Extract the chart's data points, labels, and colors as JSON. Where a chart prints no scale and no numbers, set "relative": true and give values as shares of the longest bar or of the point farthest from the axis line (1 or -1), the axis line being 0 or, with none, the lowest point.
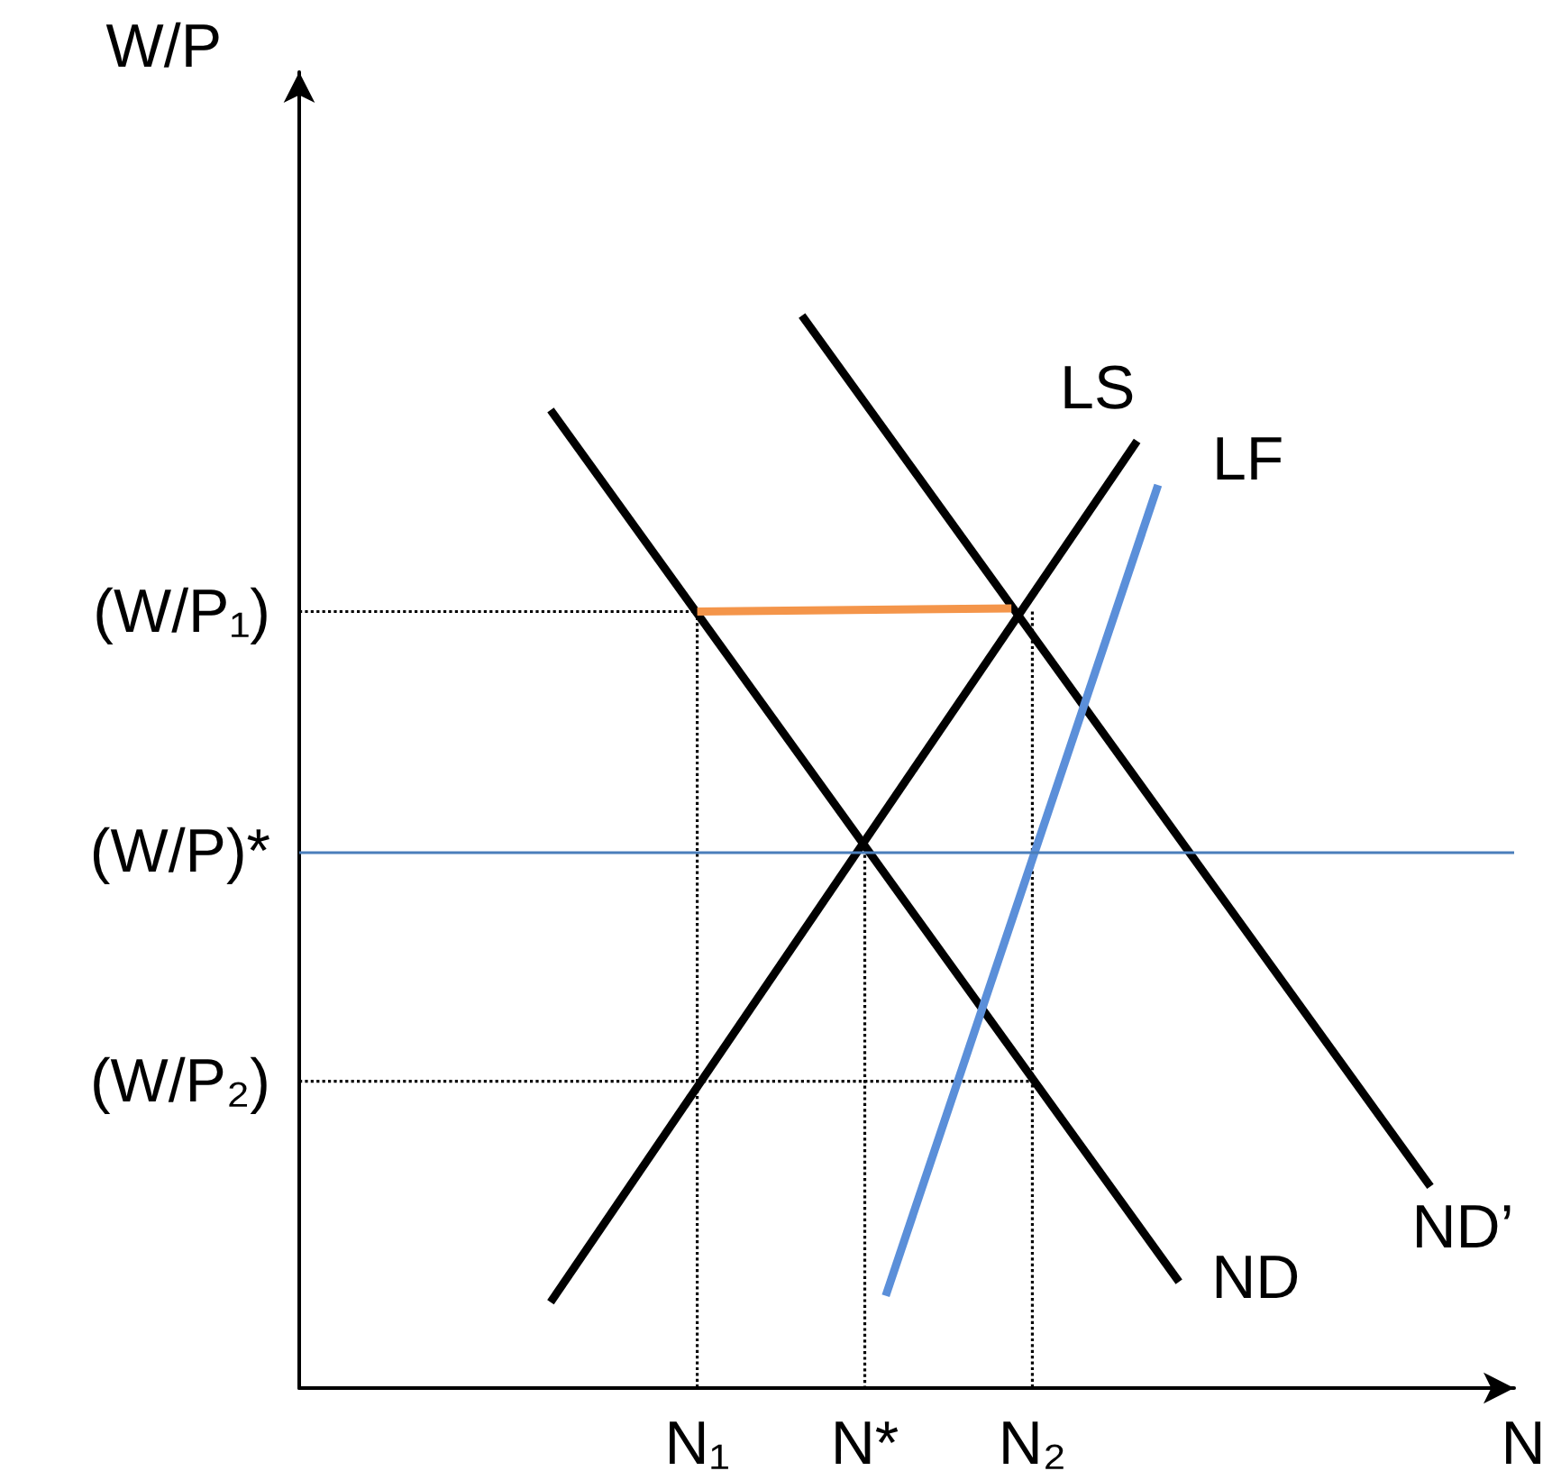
{
  "chart_data": {
    "type": "line",
    "xlabel": "N",
    "ylabel": "W/P",
    "relative": true,
    "categories": [
      null,
      null,
      null,
      null,
      null,
      null,
      null,
      null,
      null,
      null,
      null,
      null,
      null,
      null,
      null,
      null,
      null,
      null,
      null,
      "N₁",
      null,
      null,
      null,
      null,
      null,
      null,
      null,
      "N*",
      null,
      null,
      null,
      null,
      null,
      null,
      null,
      "N₂",
      null,
      null,
      null,
      null,
      null,
      null,
      null,
      null,
      null,
      null,
      null,
      null,
      null,
      null,
      null,
      null,
      null,
      null,
      null,
      null,
      null,
      null,
      null
    ],
    "grid": false,
    "legend": false,
    "marker": "none",
    "line_style": "solid",
    "ref_lines": [
      {
        "axis": "y",
        "value": 0.497,
        "label": "(W/P)*",
        "color": "#4a7ebb"
      }
    ],
    "series": [
      {
        "name": "ND",
        "color": "#000000",
        "values": [
          null,
          null,
          null,
          null,
          null,
          null,
          null,
          null,
          null,
          null,
          null,
          null,
          0.912,
          null,
          null,
          null,
          null,
          null,
          null,
          null,
          null,
          null,
          null,
          null,
          null,
          null,
          null,
          null,
          null,
          null,
          null,
          null,
          null,
          null,
          null,
          null,
          null,
          null,
          null,
          null,
          null,
          null,
          0.099,
          null,
          null,
          null,
          null,
          null,
          null,
          null,
          null,
          null,
          null,
          null,
          null,
          null,
          null,
          null,
          null
        ]
      },
      {
        "name": "ND’",
        "color": "#000000",
        "values": [
          null,
          null,
          null,
          null,
          null,
          null,
          null,
          null,
          null,
          null,
          null,
          null,
          null,
          null,
          null,
          null,
          null,
          null,
          null,
          null,
          null,
          null,
          null,
          null,
          1,
          null,
          null,
          null,
          null,
          null,
          null,
          null,
          null,
          null,
          null,
          null,
          null,
          null,
          null,
          null,
          null,
          null,
          null,
          null,
          null,
          null,
          null,
          null,
          null,
          null,
          null,
          null,
          null,
          null,
          0.188,
          null,
          null,
          null,
          null
        ]
      },
      {
        "name": "LS",
        "color": "#000000",
        "values": [
          null,
          null,
          null,
          null,
          null,
          null,
          null,
          null,
          null,
          null,
          null,
          null,
          0.08,
          null,
          null,
          null,
          null,
          null,
          null,
          null,
          null,
          null,
          null,
          null,
          null,
          null,
          null,
          null,
          null,
          null,
          null,
          null,
          null,
          null,
          null,
          null,
          null,
          null,
          null,
          null,
          0.883,
          null,
          null,
          null,
          null,
          null,
          null,
          null,
          null,
          null,
          null,
          null,
          null,
          null,
          null,
          null,
          null,
          null,
          null
        ]
      },
      {
        "name": "LF",
        "color": "#5b8fd9",
        "values": [
          null,
          null,
          null,
          null,
          null,
          null,
          null,
          null,
          null,
          null,
          null,
          null,
          null,
          null,
          null,
          null,
          null,
          null,
          null,
          null,
          null,
          null,
          null,
          null,
          null,
          null,
          null,
          null,
          0.086,
          null,
          null,
          null,
          null,
          null,
          null,
          null,
          null,
          null,
          null,
          null,
          null,
          0.842,
          null,
          null,
          null,
          null,
          null,
          null,
          null,
          null,
          null,
          null,
          null,
          null,
          null,
          null,
          null,
          null,
          null
        ]
      },
      {
        "color": "#f4954a",
        "values": [
          null,
          null,
          null,
          null,
          null,
          null,
          null,
          null,
          null,
          null,
          null,
          null,
          null,
          null,
          null,
          null,
          null,
          null,
          null,
          0.724,
          null,
          null,
          null,
          null,
          null,
          null,
          null,
          null,
          null,
          null,
          null,
          null,
          null,
          null,
          0.727,
          null,
          null,
          null,
          null,
          null,
          null,
          null,
          null,
          null,
          null,
          null,
          null,
          null,
          null,
          null,
          null,
          null,
          null,
          null,
          null,
          null,
          null,
          null,
          null
        ]
      },
      {
        "name": "(W/P₁)",
        "color": "#000000",
        "line_style": "dotted",
        "values": [
          0.724,
          null,
          null,
          null,
          null,
          null,
          null,
          null,
          null,
          null,
          null,
          null,
          null,
          null,
          null,
          null,
          null,
          null,
          null,
          0.724,
          null,
          null,
          null,
          null,
          null,
          null,
          null,
          null,
          null,
          null,
          null,
          null,
          null,
          null,
          null,
          null,
          null,
          null,
          null,
          null,
          null,
          null,
          null,
          null,
          null,
          null,
          null,
          null,
          null,
          null,
          null,
          null,
          null,
          null,
          null,
          null,
          null,
          null,
          null
        ]
      },
      {
        "name": "(W/P₂)",
        "color": "#000000",
        "line_style": "dotted",
        "values": [
          0.286,
          null,
          null,
          null,
          null,
          null,
          null,
          null,
          null,
          null,
          null,
          null,
          null,
          null,
          null,
          null,
          null,
          null,
          null,
          null,
          null,
          null,
          null,
          null,
          null,
          null,
          null,
          null,
          null,
          null,
          null,
          null,
          null,
          null,
          null,
          0.286,
          null,
          null,
          null,
          null,
          null,
          null,
          null,
          null,
          null,
          null,
          null,
          null,
          null,
          null,
          null,
          null,
          null,
          null,
          null,
          null,
          null,
          null,
          null
        ]
      },
      {
        "color": "#000000",
        "line_style": "dotted",
        "x": [
          "N₁",
          "N₁"
        ],
        "values": [
          0.724,
          0
        ]
      },
      {
        "color": "#000000",
        "line_style": "dotted",
        "x": [
          "N*",
          "N*"
        ],
        "values": [
          0.497,
          0
        ]
      },
      {
        "color": "#000000",
        "line_style": "dotted",
        "x": [
          "N₂",
          "N₂"
        ],
        "values": [
          0.724,
          0
        ]
      }
    ]
  }
}
